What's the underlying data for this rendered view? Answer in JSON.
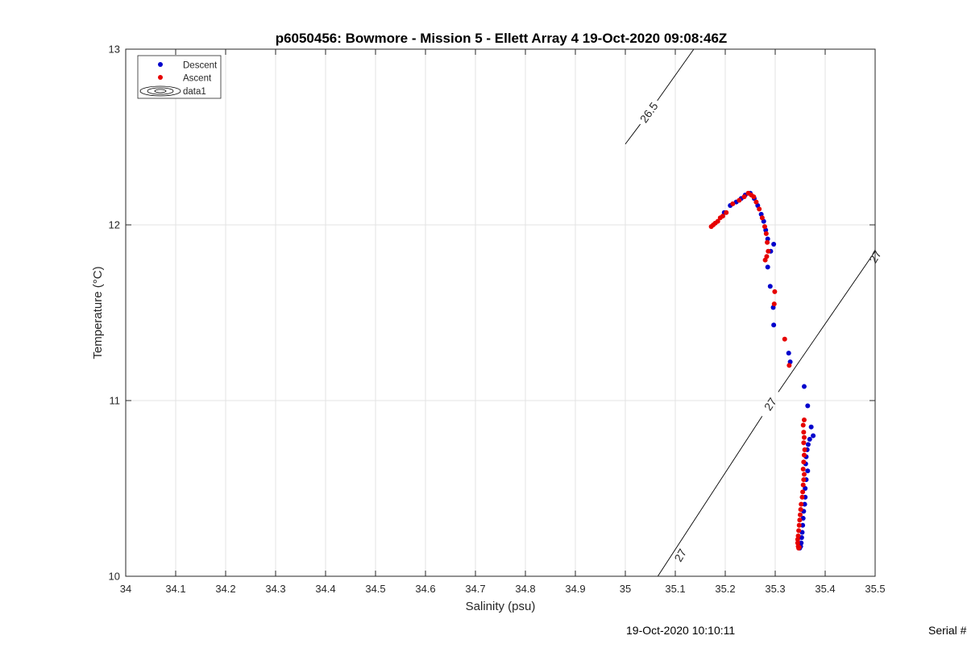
{
  "chart_data": {
    "type": "scatter",
    "title": "p6050456: Bowmore - Mission 5 - Ellett Array 4 19-Oct-2020 09:08:46Z",
    "xlabel": "Salinity (psu)",
    "ylabel": "Temperature (°C)",
    "xlim": [
      34,
      35.5
    ],
    "ylim": [
      10,
      13
    ],
    "x_ticks": [
      "34",
      "34.1",
      "34.2",
      "34.3",
      "34.4",
      "34.5",
      "34.6",
      "34.7",
      "34.8",
      "34.9",
      "35",
      "35.1",
      "35.2",
      "35.3",
      "35.4",
      "35.5"
    ],
    "y_ticks": [
      "10",
      "11",
      "12",
      "13"
    ],
    "grid": true,
    "legend_placement": "top-left",
    "legend": [
      "Descent",
      "Ascent",
      "data1"
    ],
    "series": [
      {
        "name": "Descent",
        "color": "#0000cc",
        "points": [
          [
            35.198,
            12.07
          ],
          [
            35.21,
            12.11
          ],
          [
            35.222,
            12.13
          ],
          [
            35.232,
            12.15
          ],
          [
            35.24,
            12.17
          ],
          [
            35.25,
            12.18
          ],
          [
            35.258,
            12.15
          ],
          [
            35.265,
            12.11
          ],
          [
            35.272,
            12.06
          ],
          [
            35.277,
            12.02
          ],
          [
            35.281,
            11.97
          ],
          [
            35.285,
            11.92
          ],
          [
            35.291,
            11.85
          ],
          [
            35.297,
            11.89
          ],
          [
            35.285,
            11.76
          ],
          [
            35.29,
            11.65
          ],
          [
            35.296,
            11.53
          ],
          [
            35.297,
            11.43
          ],
          [
            35.327,
            11.27
          ],
          [
            35.33,
            11.22
          ],
          [
            35.358,
            11.08
          ],
          [
            35.365,
            10.97
          ],
          [
            35.372,
            10.85
          ],
          [
            35.376,
            10.8
          ],
          [
            35.369,
            10.78
          ],
          [
            35.366,
            10.75
          ],
          [
            35.364,
            10.72
          ],
          [
            35.362,
            10.68
          ],
          [
            35.361,
            10.64
          ],
          [
            35.365,
            10.6
          ],
          [
            35.362,
            10.55
          ],
          [
            35.36,
            10.5
          ],
          [
            35.36,
            10.45
          ],
          [
            35.359,
            10.41
          ],
          [
            35.357,
            10.37
          ],
          [
            35.356,
            10.33
          ],
          [
            35.355,
            10.29
          ],
          [
            35.354,
            10.25
          ],
          [
            35.353,
            10.22
          ],
          [
            35.352,
            10.19
          ],
          [
            35.351,
            10.17
          ],
          [
            35.349,
            10.16
          ]
        ]
      },
      {
        "name": "Ascent",
        "color": "#e60000",
        "points": [
          [
            35.172,
            11.99
          ],
          [
            35.176,
            12.0
          ],
          [
            35.18,
            12.01
          ],
          [
            35.185,
            12.02
          ],
          [
            35.19,
            12.04
          ],
          [
            35.195,
            12.05
          ],
          [
            35.202,
            12.07
          ],
          [
            35.215,
            12.12
          ],
          [
            35.228,
            12.14
          ],
          [
            35.238,
            12.16
          ],
          [
            35.246,
            12.18
          ],
          [
            35.252,
            12.17
          ],
          [
            35.257,
            12.16
          ],
          [
            35.262,
            12.13
          ],
          [
            35.268,
            12.09
          ],
          [
            35.274,
            12.04
          ],
          [
            35.279,
            11.99
          ],
          [
            35.282,
            11.95
          ],
          [
            35.284,
            11.9
          ],
          [
            35.286,
            11.85
          ],
          [
            35.283,
            11.82
          ],
          [
            35.28,
            11.8
          ],
          [
            35.299,
            11.62
          ],
          [
            35.298,
            11.55
          ],
          [
            35.319,
            11.35
          ],
          [
            35.328,
            11.2
          ],
          [
            35.358,
            10.89
          ],
          [
            35.356,
            10.86
          ],
          [
            35.357,
            10.82
          ],
          [
            35.358,
            10.79
          ],
          [
            35.357,
            10.76
          ],
          [
            35.359,
            10.72
          ],
          [
            35.358,
            10.69
          ],
          [
            35.357,
            10.65
          ],
          [
            35.356,
            10.61
          ],
          [
            35.358,
            10.58
          ],
          [
            35.357,
            10.55
          ],
          [
            35.356,
            10.52
          ],
          [
            35.355,
            10.48
          ],
          [
            35.354,
            10.45
          ],
          [
            35.352,
            10.41
          ],
          [
            35.351,
            10.38
          ],
          [
            35.35,
            10.35
          ],
          [
            35.349,
            10.32
          ],
          [
            35.348,
            10.29
          ],
          [
            35.347,
            10.26
          ],
          [
            35.346,
            10.23
          ],
          [
            35.345,
            10.21
          ],
          [
            35.345,
            10.19
          ],
          [
            35.346,
            10.17
          ],
          [
            35.347,
            10.16
          ],
          [
            35.348,
            10.165
          ]
        ]
      }
    ],
    "contours": [
      {
        "label": "26.5",
        "from": [
          35.0,
          12.46
        ],
        "to": [
          35.137,
          13.0
        ],
        "label_at": [
          35.047,
          12.64
        ]
      },
      {
        "label": "27",
        "from": [
          35.065,
          10.0
        ],
        "to": [
          35.5,
          11.85
        ],
        "label_at": [
          35.29,
          10.98
        ]
      }
    ],
    "extra_contour_label": {
      "label": "27",
      "at": [
        35.5,
        11.82
      ]
    },
    "extra_contour_label_low": {
      "label": "27",
      "at": [
        35.11,
        10.12
      ]
    }
  },
  "footer": {
    "timestamp": "19-Oct-2020 10:10:11",
    "serial": "Serial #"
  }
}
